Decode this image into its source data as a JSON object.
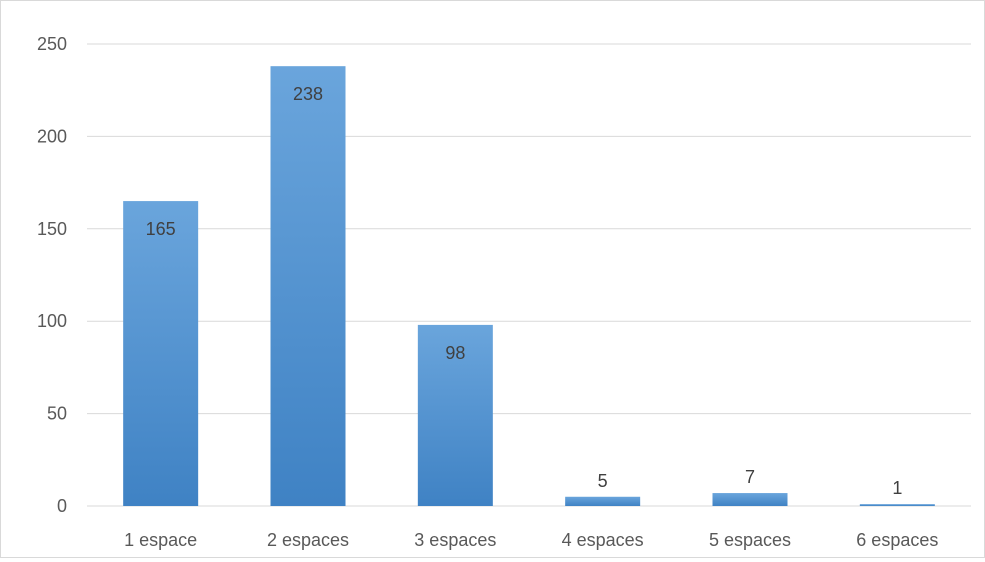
{
  "chart_data": {
    "type": "bar",
    "categories": [
      "1 espace",
      "2 espaces",
      "3 espaces",
      "4 espaces",
      "5 espaces",
      "6 espaces"
    ],
    "values": [
      165,
      238,
      98,
      5,
      7,
      1
    ],
    "title": "",
    "xlabel": "",
    "ylabel": "",
    "ylim": [
      0,
      250
    ],
    "yticks": [
      0,
      50,
      100,
      150,
      200,
      250
    ],
    "grid": true,
    "legend": "none",
    "data_labels": true,
    "colors": {
      "bar_top": "#6aa5dc",
      "bar_bottom": "#3f82c4",
      "grid": "#d9d9d9",
      "axis_text": "#595959",
      "label_text": "#404040"
    }
  }
}
